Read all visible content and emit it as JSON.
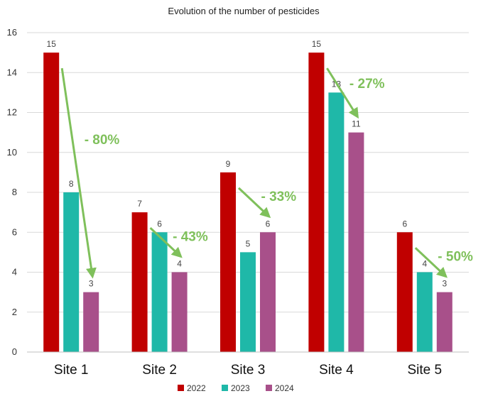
{
  "chart_data": {
    "type": "bar",
    "title": "Evolution of the number of pesticides",
    "xlabel": "",
    "ylabel": "",
    "categories": [
      "Site 1",
      "Site 2",
      "Site 3",
      "Site 4",
      "Site 5"
    ],
    "series": [
      {
        "name": "2022",
        "color": "#c00000",
        "values": [
          15,
          7,
          9,
          15,
          6
        ]
      },
      {
        "name": "2023",
        "color": "#1fb8a8",
        "values": [
          8,
          6,
          5,
          13,
          4
        ]
      },
      {
        "name": "2024",
        "color": "#a8508a",
        "values": [
          3,
          4,
          6,
          11,
          3
        ]
      }
    ],
    "ylim": [
      0,
      16
    ],
    "yticks": [
      0,
      2,
      4,
      6,
      8,
      10,
      12,
      14,
      16
    ],
    "grid": true,
    "legend_position": "bottom",
    "annotations": [
      {
        "category": "Site 1",
        "text": "- 80%",
        "from_series": "2022",
        "to_series": "2024"
      },
      {
        "category": "Site 2",
        "text": "- 43%",
        "from_series": "2022",
        "to_series": "2024"
      },
      {
        "category": "Site 3",
        "text": "- 33%",
        "from_series": "2022",
        "to_series": "2024"
      },
      {
        "category": "Site 4",
        "text": "- 27%",
        "from_series": "2022",
        "to_series": "2024"
      },
      {
        "category": "Site 5",
        "text": "- 50%",
        "from_series": "2022",
        "to_series": "2024"
      }
    ],
    "annotation_color": "#7fc05b"
  }
}
